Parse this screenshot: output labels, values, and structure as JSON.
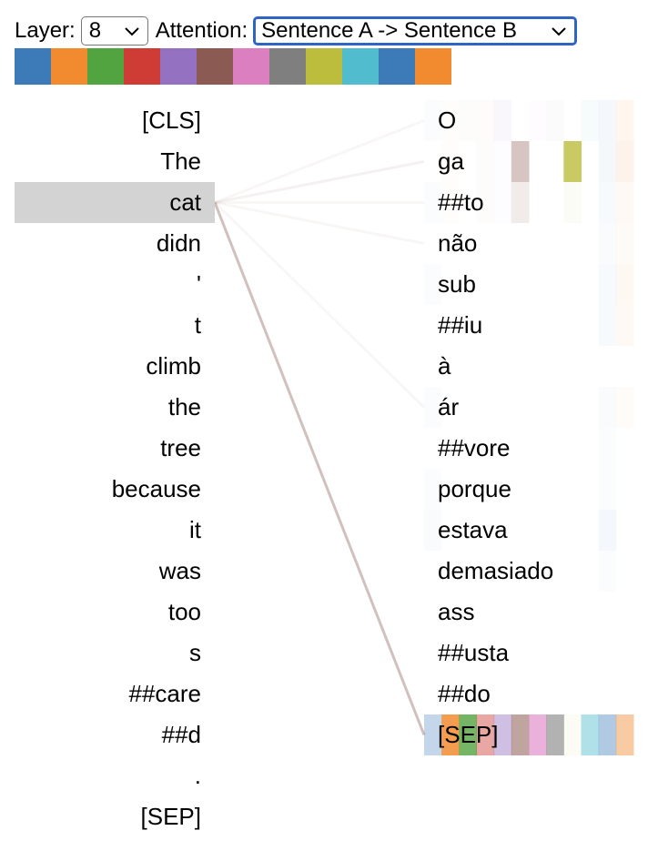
{
  "controls": {
    "layer_label": "Layer:",
    "layer_value": "8",
    "attention_label": "Attention:",
    "attention_value": "Sentence A -> Sentence B"
  },
  "head_colors": [
    "#3d7ab8",
    "#f28b30",
    "#52a440",
    "#cf3c35",
    "#9471c1",
    "#8b5a52",
    "#dc7fc1",
    "#7f7f7f",
    "#bdbd3d",
    "#51bccd",
    "#3d7ab8",
    "#f28b30"
  ],
  "sentence_a": [
    "[CLS]",
    "The",
    "cat",
    "didn",
    "'",
    "t",
    "climb",
    "the",
    "tree",
    "because",
    "it",
    "was",
    "too",
    "s",
    "##care",
    "##d",
    ".",
    "[SEP]"
  ],
  "sentence_b": [
    "O",
    "ga",
    "##to",
    "não",
    "sub",
    "##iu",
    "à",
    "ár",
    "##vore",
    "porque",
    "estava",
    "demasiado",
    "ass",
    "##usta",
    "##do",
    "[SEP]"
  ],
  "selected_token_index": 2,
  "attention_weights": [
    {
      "target": 0,
      "weight": 0.12
    },
    {
      "target": 1,
      "weight": 0.18
    },
    {
      "target": 2,
      "weight": 0.06
    },
    {
      "target": 3,
      "weight": 0.03
    },
    {
      "target": 7,
      "weight": 0.03
    },
    {
      "target": 15,
      "weight": 0.85
    }
  ],
  "line_color": "#8b5a52",
  "head_matrix": [
    [
      0.02,
      0.02,
      0.02,
      0.02,
      0.06,
      0.0,
      0.02,
      0.03,
      0.0,
      0.05,
      0.06,
      0.08
    ],
    [
      0.0,
      0.02,
      0.0,
      0.02,
      0.02,
      0.35,
      0.0,
      0.0,
      0.8,
      0.0,
      0.05,
      0.1
    ],
    [
      0.02,
      0.02,
      0.0,
      0.02,
      0.02,
      0.12,
      0.0,
      0.0,
      0.04,
      0.0,
      0.04,
      0.05
    ],
    [
      0.0,
      0.0,
      0.0,
      0.0,
      0.0,
      0.0,
      0.0,
      0.0,
      0.0,
      0.0,
      0.03,
      0.04
    ],
    [
      0.02,
      0.0,
      0.0,
      0.0,
      0.0,
      0.0,
      0.0,
      0.0,
      0.0,
      0.0,
      0.04,
      0.06
    ],
    [
      0.0,
      0.0,
      0.0,
      0.0,
      0.0,
      0.0,
      0.0,
      0.0,
      0.0,
      0.0,
      0.04,
      0.05
    ],
    [
      0.0,
      0.0,
      0.0,
      0.0,
      0.0,
      0.0,
      0.0,
      0.0,
      0.0,
      0.0,
      0.0,
      0.0
    ],
    [
      0.02,
      0.0,
      0.0,
      0.0,
      0.0,
      0.0,
      0.0,
      0.0,
      0.0,
      0.0,
      0.03,
      0.03
    ],
    [
      0.0,
      0.0,
      0.0,
      0.0,
      0.0,
      0.0,
      0.0,
      0.0,
      0.0,
      0.0,
      0.02,
      0.0
    ],
    [
      0.02,
      0.0,
      0.0,
      0.0,
      0.0,
      0.0,
      0.0,
      0.0,
      0.0,
      0.0,
      0.02,
      0.0
    ],
    [
      0.03,
      0.0,
      0.0,
      0.0,
      0.0,
      0.0,
      0.0,
      0.0,
      0.0,
      0.0,
      0.06,
      0.0
    ],
    [
      0.0,
      0.0,
      0.0,
      0.0,
      0.0,
      0.0,
      0.0,
      0.0,
      0.0,
      0.0,
      0.02,
      0.0
    ],
    [
      0.0,
      0.0,
      0.0,
      0.0,
      0.0,
      0.0,
      0.0,
      0.0,
      0.0,
      0.0,
      0.0,
      0.0
    ],
    [
      0.0,
      0.0,
      0.0,
      0.0,
      0.0,
      0.0,
      0.0,
      0.0,
      0.0,
      0.0,
      0.0,
      0.0
    ],
    [
      0.0,
      0.0,
      0.0,
      0.0,
      0.0,
      0.0,
      0.0,
      0.0,
      0.0,
      0.0,
      0.0,
      0.0
    ],
    [
      0.3,
      0.85,
      0.8,
      0.45,
      0.45,
      0.55,
      0.6,
      0.6,
      0.05,
      0.45,
      0.4,
      0.45
    ]
  ]
}
